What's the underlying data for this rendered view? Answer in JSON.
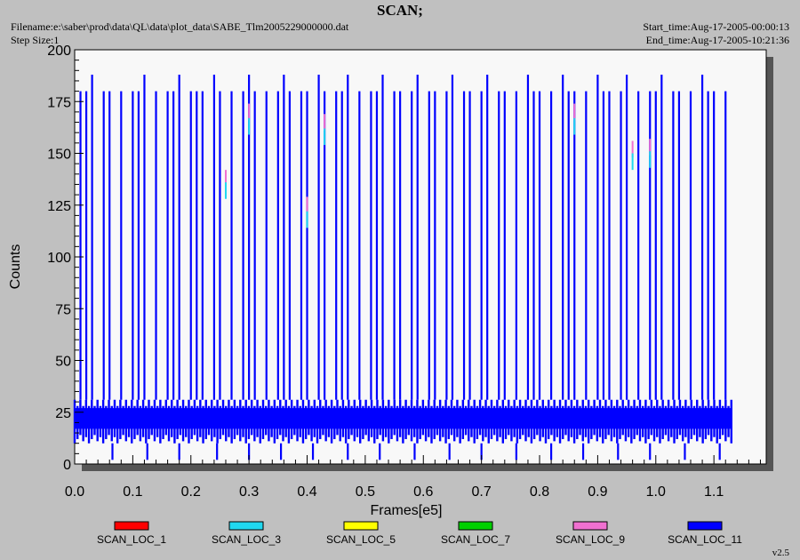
{
  "header": {
    "title": "SCAN;",
    "filename": "Filename:e:\\saber\\prod\\data\\QL\\data\\plot_data\\SABE_Tlm2005229000000.dat",
    "step_size": "Step Size:1",
    "start_time": "Start_time:Aug-17-2005-00:00:13",
    "end_time": "End_time:Aug-17-2005-10:21:36"
  },
  "version": "v2.5",
  "colors": {
    "background": "#c0c0c0",
    "plot_background": "#f8f8f8",
    "SCAN_LOC_1": "#ff0000",
    "SCAN_LOC_3": "#20d8f0",
    "SCAN_LOC_5": "#ffff00",
    "SCAN_LOC_7": "#00d000",
    "SCAN_LOC_9": "#f070d0",
    "SCAN_LOC_11": "#0000ff"
  },
  "chart_data": {
    "type": "line",
    "title": "SCAN;",
    "xlabel": "Frames[e5]",
    "ylabel": "Counts",
    "xlim": [
      0.0,
      1.19
    ],
    "ylim": [
      0,
      200
    ],
    "x_ticks": [
      "0.0",
      "0.1",
      "0.2",
      "0.3",
      "0.4",
      "0.5",
      "0.6",
      "0.7",
      "0.8",
      "0.9",
      "1.0",
      "1.1"
    ],
    "y_ticks": [
      "0",
      "25",
      "50",
      "75",
      "100",
      "125",
      "150",
      "175",
      "200"
    ],
    "legend": [
      "SCAN_LOC_1",
      "SCAN_LOC_3",
      "SCAN_LOC_5",
      "SCAN_LOC_7",
      "SCAN_LOC_9",
      "SCAN_LOC_11"
    ],
    "legend_position": "bottom",
    "grid": false,
    "series": [
      {
        "name": "SCAN_LOC_11",
        "color": "#0000ff",
        "x_range": [
          0.0,
          1.13
        ],
        "baseline_band": [
          10,
          31
        ],
        "spike_x": [
          0.01,
          0.02,
          0.03,
          0.05,
          0.06,
          0.08,
          0.1,
          0.11,
          0.12,
          0.14,
          0.16,
          0.17,
          0.18,
          0.2,
          0.21,
          0.22,
          0.24,
          0.25,
          0.27,
          0.29,
          0.3,
          0.31,
          0.33,
          0.35,
          0.36,
          0.37,
          0.39,
          0.4,
          0.42,
          0.43,
          0.45,
          0.46,
          0.47,
          0.49,
          0.51,
          0.52,
          0.53,
          0.55,
          0.56,
          0.58,
          0.59,
          0.61,
          0.62,
          0.64,
          0.65,
          0.67,
          0.68,
          0.7,
          0.71,
          0.73,
          0.74,
          0.76,
          0.78,
          0.79,
          0.8,
          0.82,
          0.84,
          0.85,
          0.86,
          0.88,
          0.9,
          0.91,
          0.92,
          0.94,
          0.95,
          0.97,
          0.99,
          1.0,
          1.01,
          1.03,
          1.04,
          1.06,
          1.08,
          1.09,
          1.1,
          1.12
        ],
        "spike_y": [
          180,
          180,
          188,
          180,
          180,
          180,
          180,
          180,
          188,
          180,
          180,
          180,
          188,
          180,
          180,
          180,
          188,
          180,
          180,
          180,
          188,
          180,
          180,
          180,
          188,
          180,
          180,
          180,
          188,
          180,
          180,
          180,
          188,
          180,
          180,
          180,
          188,
          180,
          180,
          180,
          188,
          180,
          180,
          180,
          188,
          180,
          180,
          180,
          188,
          180,
          180,
          180,
          188,
          180,
          180,
          180,
          188,
          180,
          180,
          180,
          188,
          180,
          180,
          180,
          188,
          180,
          180,
          180,
          188,
          180,
          180,
          180,
          188,
          180,
          180,
          180
        ],
        "dip_x": [
          0.065,
          0.125,
          0.18,
          0.245,
          0.3,
          0.355,
          0.41,
          0.47,
          0.525,
          0.585,
          0.645,
          0.7,
          0.76,
          0.82,
          0.875,
          0.935,
          0.99,
          1.05,
          1.11
        ],
        "dip_y": 2
      },
      {
        "name": "SCAN_LOC_9",
        "color": "#f070d0",
        "points": [
          [
            0.26,
            138
          ],
          [
            0.3,
            170
          ],
          [
            0.4,
            125
          ],
          [
            0.43,
            165
          ],
          [
            0.86,
            170
          ],
          [
            0.96,
            152
          ],
          [
            0.99,
            153
          ]
        ]
      },
      {
        "name": "SCAN_LOC_3",
        "color": "#20d8f0",
        "points": [
          [
            0.26,
            132
          ],
          [
            0.3,
            163
          ],
          [
            0.4,
            118
          ],
          [
            0.43,
            158
          ],
          [
            0.86,
            163
          ],
          [
            0.96,
            146
          ],
          [
            0.99,
            147
          ]
        ]
      }
    ]
  }
}
